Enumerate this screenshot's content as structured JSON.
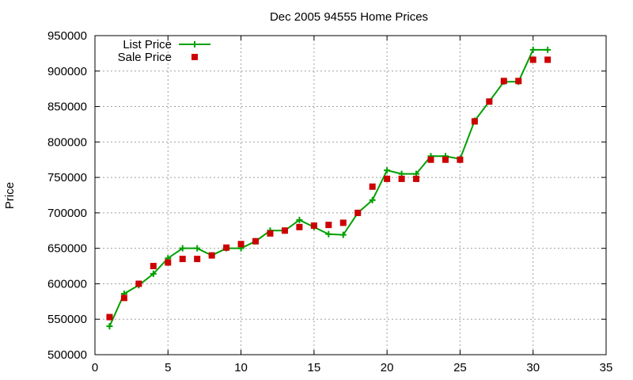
{
  "chart_data": {
    "type": "line",
    "title": "Dec 2005 94555 Home Prices",
    "xlabel": "",
    "ylabel": "Price",
    "xlim": [
      0,
      35
    ],
    "ylim": [
      500000,
      950000
    ],
    "xticks": [
      0,
      5,
      10,
      15,
      20,
      25,
      30,
      35
    ],
    "yticks": [
      500000,
      550000,
      600000,
      650000,
      700000,
      750000,
      800000,
      850000,
      900000,
      950000
    ],
    "grid": true,
    "legend_position": "top-left",
    "series": [
      {
        "name": "List Price",
        "style": "line-with-plus-markers",
        "color": "#00a000",
        "x": [
          1,
          2,
          3,
          4,
          5,
          6,
          7,
          8,
          9,
          10,
          11,
          12,
          13,
          14,
          15,
          16,
          17,
          18,
          19,
          20,
          21,
          22,
          23,
          24,
          25,
          26,
          27,
          28,
          29,
          30,
          31
        ],
        "values": [
          540000,
          586000,
          598000,
          614000,
          636000,
          650000,
          650000,
          640000,
          650000,
          650000,
          660000,
          675000,
          675000,
          690000,
          680000,
          670000,
          669000,
          700000,
          718000,
          760000,
          755000,
          755000,
          780000,
          780000,
          776000,
          830000,
          857000,
          885000,
          885000,
          930000,
          930000
        ]
      },
      {
        "name": "Sale Price",
        "style": "square-markers",
        "color": "#cc0000",
        "x": [
          1,
          2,
          3,
          4,
          5,
          6,
          7,
          8,
          9,
          10,
          11,
          12,
          13,
          14,
          15,
          16,
          17,
          18,
          19,
          20,
          21,
          22,
          23,
          24,
          25,
          26,
          27,
          28,
          29,
          30,
          31
        ],
        "values": [
          553000,
          580000,
          600000,
          625000,
          630000,
          635000,
          635000,
          640000,
          651000,
          656000,
          660000,
          671000,
          675000,
          680000,
          682000,
          683000,
          686000,
          700000,
          737000,
          748000,
          748000,
          748000,
          775000,
          775000,
          775000,
          829000,
          857000,
          886000,
          886000,
          916000,
          916000
        ]
      }
    ]
  }
}
